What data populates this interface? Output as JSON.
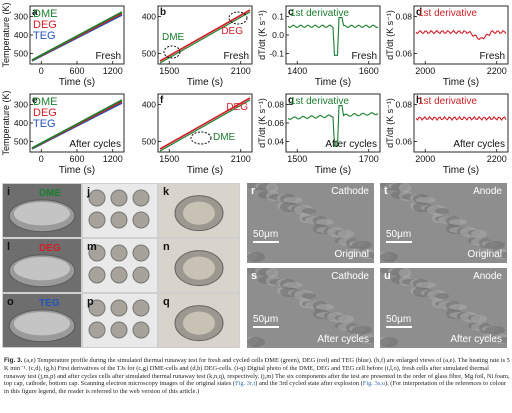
{
  "figure": {
    "colors": {
      "DME": "#1a7f2e",
      "DEG": "#d21f26",
      "TEG": "#2456b8"
    },
    "charts": [
      {
        "id": "a",
        "legend": [
          "DME",
          "DEG",
          "TEG"
        ],
        "note": "Fresh",
        "xlabel": "Time (s)",
        "ylabel": "Temperature (K)",
        "xticks": [
          "0",
          "600",
          "1200"
        ],
        "yticks": [
          "300",
          "400",
          "500"
        ]
      },
      {
        "id": "b",
        "inset_labels": [
          "DME",
          "DEG"
        ],
        "note": "Fresh",
        "xlabel": "Time (s)",
        "xticks": [
          "1500",
          "2100"
        ],
        "yticks": [
          "400",
          "500"
        ]
      },
      {
        "id": "c",
        "note_top": "1st derivative",
        "note_bottom": "Fresh",
        "xlabel": "Time (s)",
        "ylabel": "dT/dt (K s⁻¹)",
        "xticks": [
          "1400",
          "1600"
        ],
        "yticks": [
          "0.1",
          "0.0",
          "-0.1"
        ]
      },
      {
        "id": "d",
        "note_top": "1st derivative",
        "note_bottom": "Fresh",
        "xlabel": "Time (s)",
        "ylabel": "dT/dt (K s⁻¹)",
        "xticks": [
          "2000",
          "2200"
        ],
        "yticks": [
          "0.08",
          "0.06"
        ]
      },
      {
        "id": "e",
        "legend": [
          "DME",
          "DEG",
          "TEG"
        ],
        "note": "After cycles",
        "xlabel": "Time (s)",
        "ylabel": "Temperature (K)",
        "xticks": [
          "0",
          "600",
          "1200"
        ],
        "yticks": [
          "300",
          "400",
          "500"
        ]
      },
      {
        "id": "f",
        "inset_labels": [
          "DEG",
          "DME"
        ],
        "xlabel": "Time (s)",
        "xticks": [
          "1500",
          "2100"
        ],
        "yticks": [
          "400",
          "500"
        ]
      },
      {
        "id": "g",
        "note_top": "1st derivative",
        "note_bottom": "After cycles",
        "xlabel": "Time (s)",
        "ylabel": "dT/dt (K s⁻¹)",
        "xticks": [
          "1500",
          "1700"
        ],
        "yticks": [
          "0.08",
          "0.06",
          "0.04"
        ]
      },
      {
        "id": "h",
        "note_top": "1st derivative",
        "note_bottom": "After cycles",
        "xlabel": "Time (s)",
        "ylabel": "dT/dt (K s⁻¹)",
        "xticks": [
          "2000",
          "2200"
        ],
        "yticks": [
          "0.08",
          "0.06"
        ]
      }
    ],
    "photos": [
      {
        "id": "i",
        "tag": "DME"
      },
      {
        "id": "j"
      },
      {
        "id": "k"
      },
      {
        "id": "l",
        "tag": "DEG"
      },
      {
        "id": "m"
      },
      {
        "id": "n"
      },
      {
        "id": "o",
        "tag": "TEG"
      },
      {
        "id": "p"
      },
      {
        "id": "q"
      }
    ],
    "sem": [
      {
        "id": "r",
        "top_right": "Cathode",
        "scale": "50μm",
        "bottom_right": "Original"
      },
      {
        "id": "t",
        "top_right": "Anode",
        "scale": "50μm",
        "bottom_right": "Original"
      },
      {
        "id": "s",
        "top_right": "Cathode",
        "scale": "50μm",
        "bottom_right": "After cycles"
      },
      {
        "id": "u",
        "top_right": "Anode",
        "scale": "50μm",
        "bottom_right": "After cycles"
      }
    ]
  },
  "caption": {
    "label": "Fig. 3.",
    "text": " (a,e) Temperature profile during the simulated thermal runaway test for fresh and cycled cells DME (green), DEG (red) and TEG (blue). (b,f) are enlarged views of (a,e). The heating rate is 5 K min⁻¹. (c,d), (g,h) First derivatives of the TJs for (c,g) DME-cells and (d,h) DEG-cells. (i-q) Digital photo of the DME, DEG and TEG cell before (i,l,o), fresh cells after simulated thermal runaway test (j,m,p) and after cycles cells after simulated thermal runaway test (k,n,q), respectively. (j,m) The six components after the test are presented in the order of glass fibre, Mg foil, Ni foam, top cap, cathode, bottom cap. Scanning electron microscopy images of the original states (",
    "link1": "Fig. 3r,t",
    "mid": ") and the 3rd cycled state after explosion (",
    "link2": "Fig. 3s,u",
    "tail": "). (For interpretation of the references to colour in this figure legend, the reader is referred to the web version of this article.)"
  }
}
